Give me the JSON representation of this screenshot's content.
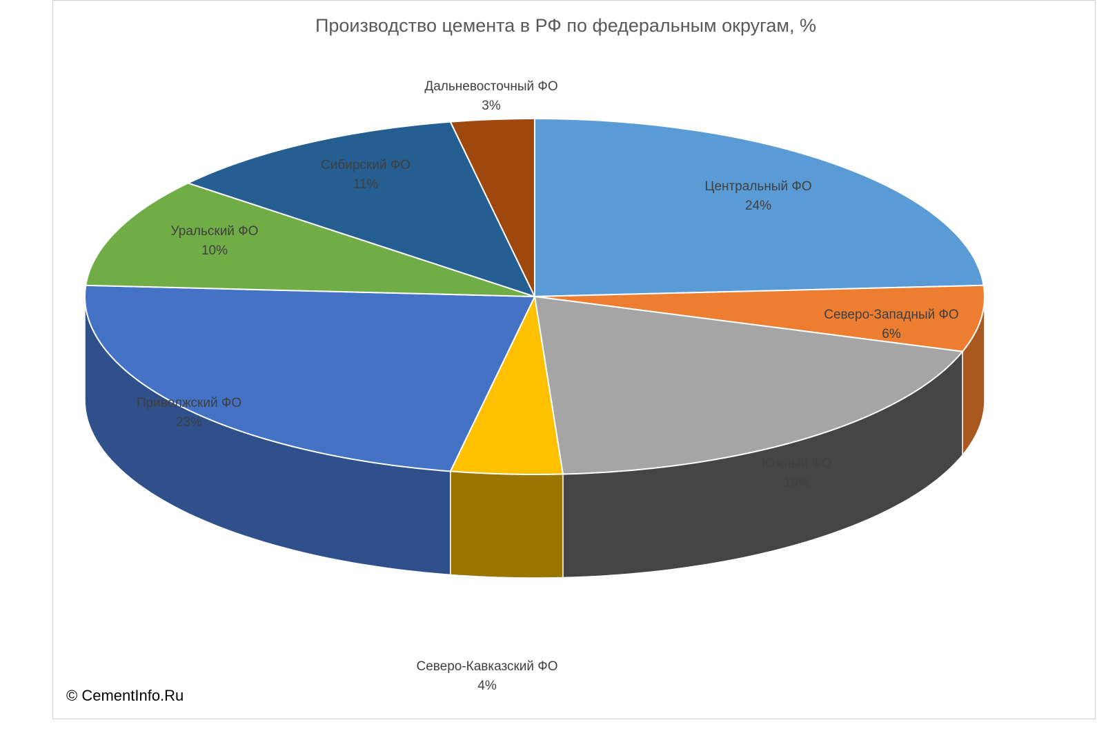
{
  "chart_data": {
    "type": "pie",
    "style": "3d",
    "title": "Производство цемента в РФ по федеральным округам, %",
    "slices": [
      {
        "name": "Центральный ФО",
        "value": 24,
        "label": "24%",
        "color": "#5B9BD5",
        "side_color": "#3F6E9A"
      },
      {
        "name": "Северо-Западный ФО",
        "value": 6,
        "label": "6%",
        "color": "#ED7D31",
        "side_color": "#A9581F"
      },
      {
        "name": "Южный ФО",
        "value": 19,
        "label": "19%",
        "color": "#A5A5A5",
        "side_color": "#454545"
      },
      {
        "name": "Северо-Кавказский ФО",
        "value": 4,
        "label": "4%",
        "color": "#FFC000",
        "side_color": "#9C7400"
      },
      {
        "name": "Приволжский ФО",
        "value": 23,
        "label": "23%",
        "color": "#4472C4",
        "side_color": "#30508B"
      },
      {
        "name": "Уральский ФО",
        "value": 10,
        "label": "10%",
        "color": "#70AD47",
        "side_color": "#4E7A32"
      },
      {
        "name": "Сибирский ФО",
        "value": 11,
        "label": "11%",
        "color": "#255E91",
        "side_color": "#1A4368"
      },
      {
        "name": "Дальневосточный ФО",
        "value": 3,
        "label": "3%",
        "color": "#9E480E",
        "side_color": "#6E320A"
      }
    ]
  },
  "footer": {
    "copyright": "© CementInfo.Ru"
  }
}
